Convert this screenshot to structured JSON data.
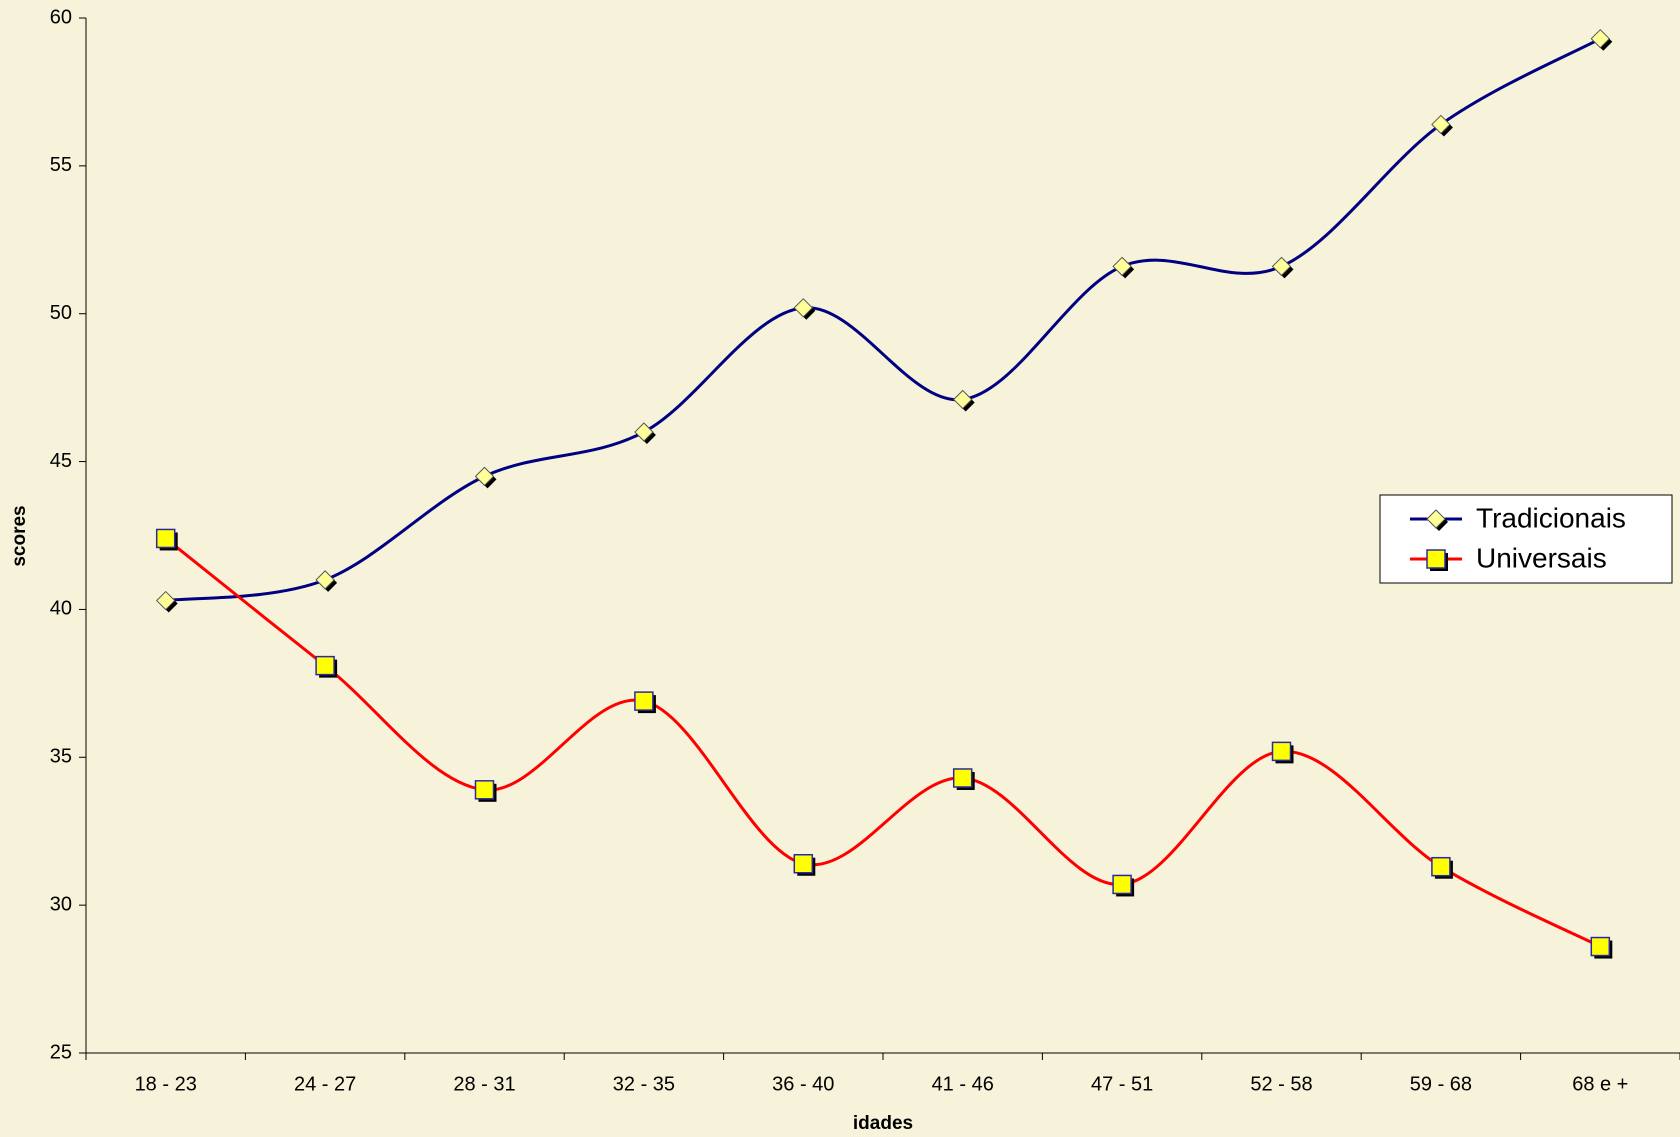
{
  "chart_data": {
    "type": "line",
    "x_label": "idades",
    "y_label": "scores",
    "categories": [
      "18 - 23",
      "24 - 27",
      "28 - 31",
      "32 - 35",
      "36 - 40",
      "41 - 46",
      "47 - 51",
      "52 - 58",
      "59 - 68",
      "68 e +"
    ],
    "series": [
      {
        "name": "Tradicionais",
        "color": "#000080",
        "marker": "diamond",
        "marker_color": "#ffff99",
        "values": [
          40.3,
          41.0,
          44.5,
          46.0,
          50.2,
          47.1,
          51.6,
          51.6,
          56.4,
          59.3
        ]
      },
      {
        "name": "Universais",
        "color": "#ff0000",
        "marker": "square",
        "marker_color": "#ffff00",
        "values": [
          42.4,
          38.1,
          33.9,
          36.9,
          31.4,
          34.3,
          30.7,
          35.2,
          31.3,
          28.6
        ]
      }
    ],
    "ylim": [
      25,
      60
    ],
    "yticks": [
      25,
      30,
      35,
      40,
      45,
      50,
      55,
      60
    ],
    "smooth": true,
    "legend": "right"
  }
}
